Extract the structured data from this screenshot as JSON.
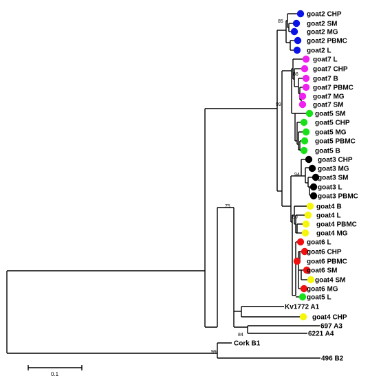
{
  "colors": {
    "goat2": "#0a14e6",
    "goat7": "#f020f0",
    "goat5": "#18e018",
    "goat3": "#000000",
    "goat4": "#f6f60a",
    "goat6": "#f01010",
    "line": "#000000"
  },
  "leaves": [
    {
      "label": "goat2 CHP",
      "group": "goat2"
    },
    {
      "label": "goat2 SM",
      "group": "goat2"
    },
    {
      "label": "goat2 MG",
      "group": "goat2"
    },
    {
      "label": "goat2 PBMC",
      "group": "goat2"
    },
    {
      "label": "goat2 L",
      "group": "goat2"
    },
    {
      "label": "goat7 L",
      "group": "goat7"
    },
    {
      "label": "goat7 CHP",
      "group": "goat7"
    },
    {
      "label": "goat7 B",
      "group": "goat7"
    },
    {
      "label": "goat7 PBMC",
      "group": "goat7"
    },
    {
      "label": "goat7 MG",
      "group": "goat7"
    },
    {
      "label": "goat7 SM",
      "group": "goat7"
    },
    {
      "label": "goat5 SM",
      "group": "goat5"
    },
    {
      "label": "goat5 CHP",
      "group": "goat5"
    },
    {
      "label": "goat5 MG",
      "group": "goat5"
    },
    {
      "label": "goat5 PBMC",
      "group": "goat5"
    },
    {
      "label": "goat5 B",
      "group": "goat5"
    },
    {
      "label": "goat3 CHP",
      "group": "goat3"
    },
    {
      "label": "goat3 MG",
      "group": "goat3"
    },
    {
      "label": "goat3 SM",
      "group": "goat3"
    },
    {
      "label": "goat3 L",
      "group": "goat3"
    },
    {
      "label": "goat3 PBMC",
      "group": "goat3"
    },
    {
      "label": "goat4 B",
      "group": "goat4"
    },
    {
      "label": "goat4 L",
      "group": "goat4"
    },
    {
      "label": "goat4 PBMC",
      "group": "goat4"
    },
    {
      "label": "goat4 MG",
      "group": "goat4"
    },
    {
      "label": "goat6 L",
      "group": "goat6"
    },
    {
      "label": "goat6 CHP",
      "group": "goat6"
    },
    {
      "label": "goat6 PBMC",
      "group": "goat6"
    },
    {
      "label": "goat6 SM",
      "group": "goat6"
    },
    {
      "label": "goat4 SM",
      "group": "goat4"
    },
    {
      "label": "goat6 MG",
      "group": "goat6"
    },
    {
      "label": "goat5 L",
      "group": "goat5"
    },
    {
      "label": "Kv1772 A1",
      "group": null
    },
    {
      "label": "goat4 CHP",
      "group": "goat4"
    },
    {
      "label": "697 A3",
      "group": null
    },
    {
      "label": "6221 A4",
      "group": null
    },
    {
      "label": "Cork B1",
      "group": null
    },
    {
      "label": "496 B2",
      "group": null
    }
  ],
  "bootstrap": [
    "85",
    "86",
    "99",
    "94",
    "80",
    "75",
    "84",
    "99"
  ],
  "scale_bar": {
    "label": "0.1"
  }
}
